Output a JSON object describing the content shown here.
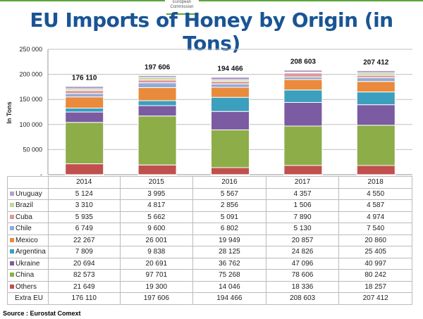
{
  "header": {
    "logo_text": "European Commission",
    "title": "EU Imports of Honey by Origin (in Tons)"
  },
  "chart_data": {
    "type": "bar",
    "stacked": true,
    "ylabel": "In Tons",
    "ylim": [
      0,
      250000
    ],
    "yticks": [
      "-",
      "50 000",
      "100 000",
      "150 000",
      "200 000",
      "250 000"
    ],
    "yticks_values": [
      0,
      50000,
      100000,
      150000,
      200000,
      250000
    ],
    "grid": true,
    "categories": [
      "2014",
      "2015",
      "2016",
      "2017",
      "2018"
    ],
    "totals_label": "Extra EU",
    "totals": [
      176110,
      197606,
      194466,
      208603,
      207412
    ],
    "totals_text": [
      "176 110",
      "197 606",
      "194 466",
      "208 603",
      "207 412"
    ],
    "series": [
      {
        "name": "Others",
        "color": "#c0504d",
        "values": [
          21649,
          19300,
          14046,
          18336,
          18257
        ],
        "text": [
          "21 649",
          "19 300",
          "14 046",
          "18 336",
          "18 257"
        ]
      },
      {
        "name": "China",
        "color": "#8cad48",
        "values": [
          82573,
          97701,
          75268,
          78606,
          80242
        ],
        "text": [
          "82 573",
          "97 701",
          "75 268",
          "78 606",
          "80 242"
        ]
      },
      {
        "name": "Ukraine",
        "color": "#7b5ba1",
        "values": [
          20694,
          20691,
          36762,
          47096,
          40997
        ],
        "text": [
          "20 694",
          "20 691",
          "36 762",
          "47 096",
          "40 997"
        ]
      },
      {
        "name": "Argentina",
        "color": "#3b9fbd",
        "values": [
          7809,
          9838,
          28125,
          24826,
          25405
        ],
        "text": [
          "7 809",
          "9 838",
          "28 125",
          "24 826",
          "25 405"
        ]
      },
      {
        "name": "Mexico",
        "color": "#e98a3c",
        "values": [
          22267,
          26001,
          19949,
          20857,
          20860
        ],
        "text": [
          "22 267",
          "26 001",
          "19 949",
          "20 857",
          "20 860"
        ]
      },
      {
        "name": "Chile",
        "color": "#93aad6",
        "values": [
          6749,
          9600,
          6802,
          5130,
          7540
        ],
        "text": [
          "6 749",
          "9 600",
          "6 802",
          "5 130",
          "7 540"
        ]
      },
      {
        "name": "Cuba",
        "color": "#dc9a9a",
        "values": [
          5935,
          5662,
          5091,
          7890,
          4974
        ],
        "text": [
          "5 935",
          "5 662",
          "5 091",
          "7 890",
          "4 974"
        ]
      },
      {
        "name": "Brazil",
        "color": "#c3d69b",
        "values": [
          3310,
          4817,
          2856,
          1506,
          4587
        ],
        "text": [
          "3 310",
          "4 817",
          "2 856",
          "1 506",
          "4 587"
        ]
      },
      {
        "name": "Uruguay",
        "color": "#b3a3c8",
        "values": [
          5124,
          3995,
          5567,
          4357,
          4550
        ],
        "text": [
          "5 124",
          "3 995",
          "5 567",
          "4 357",
          "4 550"
        ]
      }
    ]
  },
  "source": "Source : Eurostat Comext"
}
